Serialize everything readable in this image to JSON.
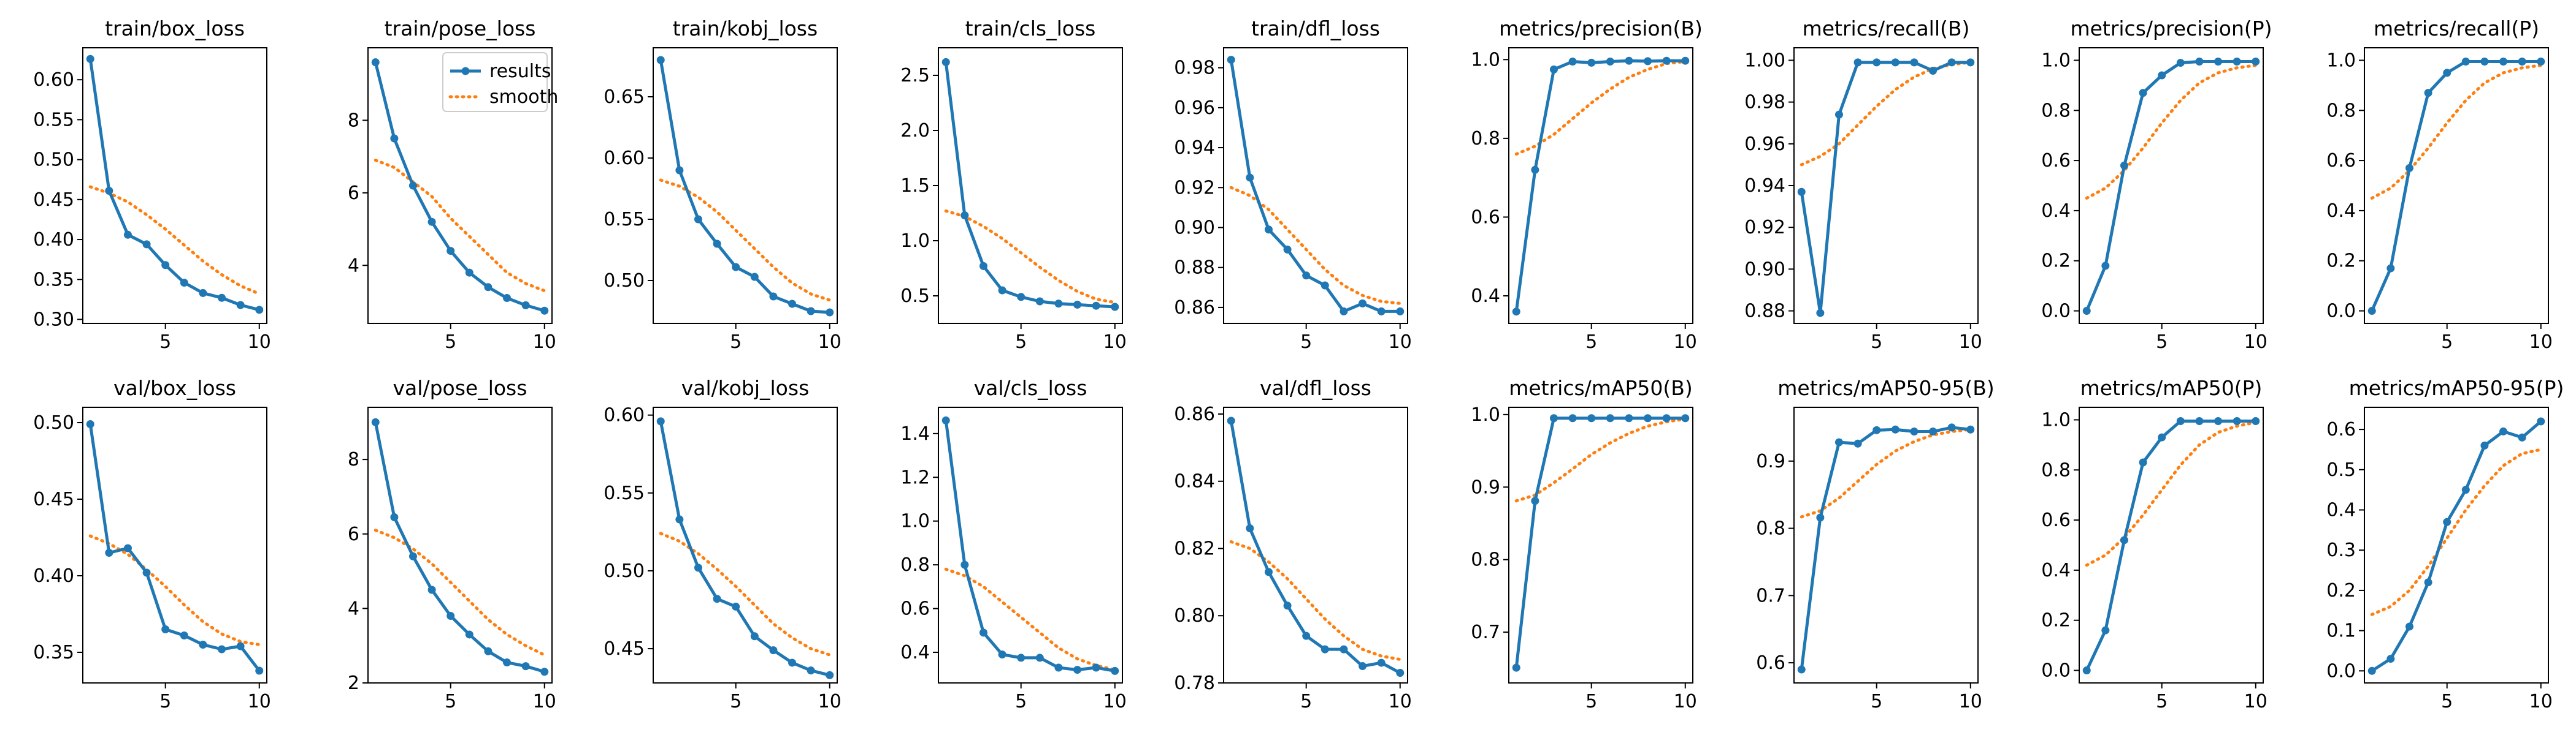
{
  "colors": {
    "results": "#1f77b4",
    "smooth": "#ff7f0e",
    "axes": "#000000",
    "background": "#ffffff"
  },
  "legend": {
    "entries": [
      "results",
      "smooth"
    ],
    "placement": "upper right of train/pose_loss panel"
  },
  "chart_data": [
    {
      "type": "line",
      "title": "train/box_loss",
      "x": [
        1,
        2,
        3,
        4,
        5,
        6,
        7,
        8,
        9,
        10
      ],
      "ylim": [
        0.295,
        0.64
      ],
      "xlim": [
        0.6,
        10.4
      ],
      "xticks": [
        5,
        10
      ],
      "yticks": [
        0.3,
        0.35,
        0.4,
        0.45,
        0.5,
        0.55,
        0.6
      ],
      "yfmt": 2,
      "series": [
        {
          "name": "results",
          "values": [
            0.626,
            0.461,
            0.406,
            0.394,
            0.368,
            0.346,
            0.333,
            0.327,
            0.318,
            0.312
          ]
        },
        {
          "name": "smooth",
          "values": [
            0.466,
            0.458,
            0.447,
            0.431,
            0.413,
            0.393,
            0.373,
            0.356,
            0.342,
            0.332
          ]
        }
      ]
    },
    {
      "type": "line",
      "title": "train/pose_loss",
      "x": [
        1,
        2,
        3,
        4,
        5,
        6,
        7,
        8,
        9,
        10
      ],
      "ylim": [
        2.4,
        10.0
      ],
      "xlim": [
        0.6,
        10.4
      ],
      "xticks": [
        5,
        10
      ],
      "yticks": [
        4,
        6,
        8
      ],
      "yfmt": 0,
      "legend": true,
      "series": [
        {
          "name": "results",
          "values": [
            9.6,
            7.5,
            6.2,
            5.2,
            4.4,
            3.8,
            3.4,
            3.1,
            2.9,
            2.75
          ]
        },
        {
          "name": "smooth",
          "values": [
            6.9,
            6.7,
            6.3,
            5.9,
            5.3,
            4.8,
            4.3,
            3.8,
            3.5,
            3.3
          ]
        }
      ]
    },
    {
      "type": "line",
      "title": "train/kobj_loss",
      "x": [
        1,
        2,
        3,
        4,
        5,
        6,
        7,
        8,
        9,
        10
      ],
      "ylim": [
        0.465,
        0.69
      ],
      "xlim": [
        0.6,
        10.4
      ],
      "xticks": [
        5,
        10
      ],
      "yticks": [
        0.5,
        0.55,
        0.6,
        0.65
      ],
      "yfmt": 2,
      "series": [
        {
          "name": "results",
          "values": [
            0.68,
            0.59,
            0.55,
            0.53,
            0.511,
            0.503,
            0.487,
            0.481,
            0.475,
            0.474
          ]
        },
        {
          "name": "smooth",
          "values": [
            0.582,
            0.577,
            0.568,
            0.556,
            0.541,
            0.526,
            0.511,
            0.498,
            0.489,
            0.484
          ]
        }
      ]
    },
    {
      "type": "line",
      "title": "train/cls_loss",
      "x": [
        1,
        2,
        3,
        4,
        5,
        6,
        7,
        8,
        9,
        10
      ],
      "ylim": [
        0.25,
        2.75
      ],
      "xlim": [
        0.6,
        10.4
      ],
      "xticks": [
        5,
        10
      ],
      "yticks": [
        0.5,
        1.0,
        1.5,
        2.0,
        2.5
      ],
      "yfmt": 1,
      "series": [
        {
          "name": "results",
          "values": [
            2.62,
            1.23,
            0.77,
            0.55,
            0.49,
            0.45,
            0.43,
            0.42,
            0.41,
            0.4
          ]
        },
        {
          "name": "smooth",
          "values": [
            1.27,
            1.22,
            1.13,
            1.02,
            0.89,
            0.76,
            0.64,
            0.54,
            0.47,
            0.44
          ]
        }
      ]
    },
    {
      "type": "line",
      "title": "train/dfl_loss",
      "x": [
        1,
        2,
        3,
        4,
        5,
        6,
        7,
        8,
        9,
        10
      ],
      "ylim": [
        0.852,
        0.99
      ],
      "xlim": [
        0.6,
        10.4
      ],
      "xticks": [
        5,
        10
      ],
      "yticks": [
        0.86,
        0.88,
        0.9,
        0.92,
        0.94,
        0.96,
        0.98
      ],
      "yfmt": 2,
      "series": [
        {
          "name": "results",
          "values": [
            0.984,
            0.925,
            0.899,
            0.889,
            0.876,
            0.871,
            0.858,
            0.862,
            0.858,
            0.858
          ]
        },
        {
          "name": "smooth",
          "values": [
            0.92,
            0.916,
            0.909,
            0.899,
            0.889,
            0.879,
            0.871,
            0.866,
            0.863,
            0.862
          ]
        }
      ]
    },
    {
      "type": "line",
      "title": "metrics/precision(B)",
      "x": [
        1,
        2,
        3,
        4,
        5,
        6,
        7,
        8,
        9,
        10
      ],
      "ylim": [
        0.33,
        1.03
      ],
      "xlim": [
        0.6,
        10.4
      ],
      "xticks": [
        5,
        10
      ],
      "yticks": [
        0.4,
        0.6,
        0.8,
        1.0
      ],
      "yfmt": 1,
      "series": [
        {
          "name": "results",
          "values": [
            0.36,
            0.72,
            0.975,
            0.995,
            0.992,
            0.995,
            0.997,
            0.996,
            0.997,
            0.997
          ]
        },
        {
          "name": "smooth",
          "values": [
            0.76,
            0.78,
            0.81,
            0.85,
            0.89,
            0.925,
            0.955,
            0.975,
            0.99,
            0.995
          ]
        }
      ]
    },
    {
      "type": "line",
      "title": "metrics/recall(B)",
      "x": [
        1,
        2,
        3,
        4,
        5,
        6,
        7,
        8,
        9,
        10
      ],
      "ylim": [
        0.874,
        1.006
      ],
      "xlim": [
        0.6,
        10.4
      ],
      "xticks": [
        5,
        10
      ],
      "yticks": [
        0.88,
        0.9,
        0.92,
        0.94,
        0.96,
        0.98,
        1.0
      ],
      "yfmt": 2,
      "series": [
        {
          "name": "results",
          "values": [
            0.937,
            0.879,
            0.974,
            0.999,
            0.999,
            0.999,
            0.999,
            0.995,
            0.999,
            0.999
          ]
        },
        {
          "name": "smooth",
          "values": [
            0.95,
            0.954,
            0.96,
            0.969,
            0.978,
            0.986,
            0.992,
            0.996,
            0.998,
            0.999
          ]
        }
      ]
    },
    {
      "type": "line",
      "title": "metrics/precision(P)",
      "x": [
        1,
        2,
        3,
        4,
        5,
        6,
        7,
        8,
        9,
        10
      ],
      "ylim": [
        -0.05,
        1.05
      ],
      "xlim": [
        0.6,
        10.4
      ],
      "xticks": [
        5,
        10
      ],
      "yticks": [
        0.0,
        0.2,
        0.4,
        0.6,
        0.8,
        1.0
      ],
      "yfmt": 1,
      "series": [
        {
          "name": "results",
          "values": [
            0.0,
            0.18,
            0.58,
            0.87,
            0.94,
            0.99,
            0.995,
            0.995,
            0.995,
            0.995
          ]
        },
        {
          "name": "smooth",
          "values": [
            0.45,
            0.49,
            0.56,
            0.65,
            0.75,
            0.84,
            0.91,
            0.95,
            0.97,
            0.98
          ]
        }
      ]
    },
    {
      "type": "line",
      "title": "metrics/recall(P)",
      "x": [
        1,
        2,
        3,
        4,
        5,
        6,
        7,
        8,
        9,
        10
      ],
      "ylim": [
        -0.05,
        1.05
      ],
      "xlim": [
        0.6,
        10.4
      ],
      "xticks": [
        5,
        10
      ],
      "yticks": [
        0.0,
        0.2,
        0.4,
        0.6,
        0.8,
        1.0
      ],
      "yfmt": 1,
      "series": [
        {
          "name": "results",
          "values": [
            0.0,
            0.17,
            0.57,
            0.87,
            0.95,
            0.995,
            0.995,
            0.995,
            0.995,
            0.995
          ]
        },
        {
          "name": "smooth",
          "values": [
            0.45,
            0.49,
            0.56,
            0.65,
            0.75,
            0.84,
            0.91,
            0.95,
            0.97,
            0.98
          ]
        }
      ]
    },
    {
      "type": "line",
      "title": "val/box_loss",
      "x": [
        1,
        2,
        3,
        4,
        5,
        6,
        7,
        8,
        9,
        10
      ],
      "ylim": [
        0.33,
        0.51
      ],
      "xlim": [
        0.6,
        10.4
      ],
      "xticks": [
        5,
        10
      ],
      "yticks": [
        0.35,
        0.4,
        0.45,
        0.5
      ],
      "yfmt": 2,
      "series": [
        {
          "name": "results",
          "values": [
            0.499,
            0.415,
            0.418,
            0.402,
            0.365,
            0.361,
            0.355,
            0.352,
            0.354,
            0.338
          ]
        },
        {
          "name": "smooth",
          "values": [
            0.426,
            0.421,
            0.414,
            0.404,
            0.393,
            0.381,
            0.37,
            0.362,
            0.357,
            0.355
          ]
        }
      ]
    },
    {
      "type": "line",
      "title": "val/pose_loss",
      "x": [
        1,
        2,
        3,
        4,
        5,
        6,
        7,
        8,
        9,
        10
      ],
      "ylim": [
        2.0,
        9.4
      ],
      "xlim": [
        0.6,
        10.4
      ],
      "xticks": [
        5,
        10
      ],
      "yticks": [
        2,
        4,
        6,
        8
      ],
      "yfmt": 0,
      "series": [
        {
          "name": "results",
          "values": [
            9.0,
            6.45,
            5.4,
            4.5,
            3.8,
            3.3,
            2.85,
            2.55,
            2.45,
            2.3
          ]
        },
        {
          "name": "smooth",
          "values": [
            6.1,
            5.9,
            5.6,
            5.2,
            4.7,
            4.2,
            3.7,
            3.3,
            3.0,
            2.75
          ]
        }
      ]
    },
    {
      "type": "line",
      "title": "val/kobj_loss",
      "x": [
        1,
        2,
        3,
        4,
        5,
        6,
        7,
        8,
        9,
        10
      ],
      "ylim": [
        0.428,
        0.605
      ],
      "xlim": [
        0.6,
        10.4
      ],
      "xticks": [
        5,
        10
      ],
      "yticks": [
        0.45,
        0.5,
        0.55,
        0.6
      ],
      "yfmt": 2,
      "series": [
        {
          "name": "results",
          "values": [
            0.596,
            0.533,
            0.502,
            0.482,
            0.477,
            0.458,
            0.449,
            0.441,
            0.436,
            0.433
          ]
        },
        {
          "name": "smooth",
          "values": [
            0.524,
            0.519,
            0.511,
            0.501,
            0.49,
            0.478,
            0.466,
            0.457,
            0.45,
            0.446
          ]
        }
      ]
    },
    {
      "type": "line",
      "title": "val/cls_loss",
      "x": [
        1,
        2,
        3,
        4,
        5,
        6,
        7,
        8,
        9,
        10
      ],
      "ylim": [
        0.26,
        1.52
      ],
      "xlim": [
        0.6,
        10.4
      ],
      "xticks": [
        5,
        10
      ],
      "yticks": [
        0.4,
        0.6,
        0.8,
        1.0,
        1.2,
        1.4
      ],
      "yfmt": 1,
      "series": [
        {
          "name": "results",
          "values": [
            1.46,
            0.8,
            0.49,
            0.39,
            0.375,
            0.375,
            0.33,
            0.32,
            0.33,
            0.315
          ]
        },
        {
          "name": "smooth",
          "values": [
            0.78,
            0.75,
            0.7,
            0.63,
            0.56,
            0.49,
            0.42,
            0.37,
            0.34,
            0.32
          ]
        }
      ]
    },
    {
      "type": "line",
      "title": "val/dfl_loss",
      "x": [
        1,
        2,
        3,
        4,
        5,
        6,
        7,
        8,
        9,
        10
      ],
      "ylim": [
        0.78,
        0.862
      ],
      "xlim": [
        0.6,
        10.4
      ],
      "xticks": [
        5,
        10
      ],
      "yticks": [
        0.78,
        0.8,
        0.82,
        0.84,
        0.86
      ],
      "yfmt": 2,
      "series": [
        {
          "name": "results",
          "values": [
            0.858,
            0.826,
            0.813,
            0.803,
            0.794,
            0.79,
            0.79,
            0.785,
            0.786,
            0.783
          ]
        },
        {
          "name": "smooth",
          "values": [
            0.822,
            0.82,
            0.816,
            0.811,
            0.805,
            0.799,
            0.794,
            0.79,
            0.788,
            0.787
          ]
        }
      ]
    },
    {
      "type": "line",
      "title": "metrics/mAP50(B)",
      "x": [
        1,
        2,
        3,
        4,
        5,
        6,
        7,
        8,
        9,
        10
      ],
      "ylim": [
        0.63,
        1.01
      ],
      "xlim": [
        0.6,
        10.4
      ],
      "xticks": [
        5,
        10
      ],
      "yticks": [
        0.7,
        0.8,
        0.9,
        1.0
      ],
      "yfmt": 1,
      "series": [
        {
          "name": "results",
          "values": [
            0.651,
            0.881,
            0.995,
            0.995,
            0.995,
            0.995,
            0.995,
            0.995,
            0.995,
            0.995
          ]
        },
        {
          "name": "smooth",
          "values": [
            0.881,
            0.889,
            0.906,
            0.925,
            0.945,
            0.961,
            0.974,
            0.984,
            0.99,
            0.994
          ]
        }
      ]
    },
    {
      "type": "line",
      "title": "metrics/mAP50-95(B)",
      "x": [
        1,
        2,
        3,
        4,
        5,
        6,
        7,
        8,
        9,
        10
      ],
      "ylim": [
        0.57,
        0.98
      ],
      "xlim": [
        0.6,
        10.4
      ],
      "xticks": [
        5,
        10
      ],
      "yticks": [
        0.6,
        0.7,
        0.8,
        0.9
      ],
      "yfmt": 1,
      "series": [
        {
          "name": "results",
          "values": [
            0.59,
            0.816,
            0.928,
            0.926,
            0.946,
            0.947,
            0.944,
            0.944,
            0.95,
            0.947
          ]
        },
        {
          "name": "smooth",
          "values": [
            0.817,
            0.826,
            0.845,
            0.87,
            0.895,
            0.915,
            0.929,
            0.939,
            0.944,
            0.947
          ]
        }
      ]
    },
    {
      "type": "line",
      "title": "metrics/mAP50(P)",
      "x": [
        1,
        2,
        3,
        4,
        5,
        6,
        7,
        8,
        9,
        10
      ],
      "ylim": [
        -0.05,
        1.05
      ],
      "xlim": [
        0.6,
        10.4
      ],
      "xticks": [
        5,
        10
      ],
      "yticks": [
        0.0,
        0.2,
        0.4,
        0.6,
        0.8,
        1.0
      ],
      "yfmt": 1,
      "series": [
        {
          "name": "results",
          "values": [
            0.0,
            0.16,
            0.52,
            0.83,
            0.93,
            0.995,
            0.995,
            0.995,
            0.995,
            0.995
          ]
        },
        {
          "name": "smooth",
          "values": [
            0.42,
            0.46,
            0.53,
            0.62,
            0.72,
            0.82,
            0.9,
            0.95,
            0.975,
            0.99
          ]
        }
      ]
    },
    {
      "type": "line",
      "title": "metrics/mAP50-95(P)",
      "x": [
        1,
        2,
        3,
        4,
        5,
        6,
        7,
        8,
        9,
        10
      ],
      "ylim": [
        -0.03,
        0.655
      ],
      "xlim": [
        0.6,
        10.4
      ],
      "xticks": [
        5,
        10
      ],
      "yticks": [
        0.0,
        0.1,
        0.2,
        0.3,
        0.4,
        0.5,
        0.6
      ],
      "yfmt": 1,
      "series": [
        {
          "name": "results",
          "values": [
            0.0,
            0.03,
            0.11,
            0.22,
            0.37,
            0.45,
            0.56,
            0.595,
            0.58,
            0.62
          ]
        },
        {
          "name": "smooth",
          "values": [
            0.14,
            0.16,
            0.2,
            0.26,
            0.33,
            0.4,
            0.46,
            0.51,
            0.54,
            0.55
          ]
        }
      ]
    }
  ]
}
